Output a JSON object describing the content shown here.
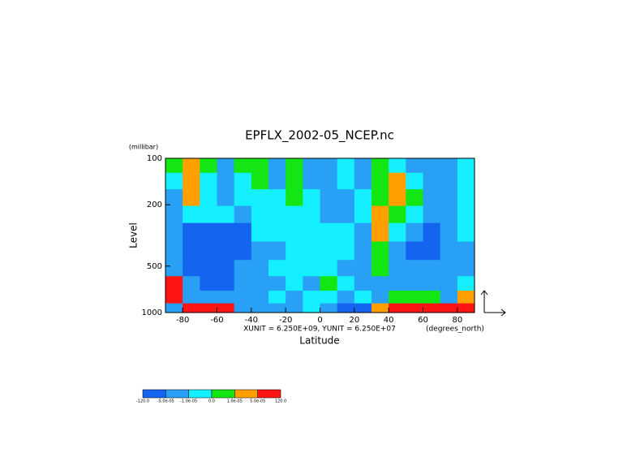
{
  "chart_data": {
    "type": "heatmap",
    "title": "EPFLX_2002-05_NCEP.nc",
    "x_label": "Latitude",
    "x_units": "(degrees_north)",
    "y_label": "Level",
    "y_units": "(millibar)",
    "annotation": "XUNIT = 6.250E+09, YUNIT = 6.250E+07",
    "x": [
      -85,
      -75,
      -65,
      -55,
      -45,
      -35,
      -25,
      -15,
      -5,
      5,
      15,
      25,
      35,
      45,
      55,
      65,
      75,
      85
    ],
    "y": [
      110,
      140,
      180,
      230,
      300,
      400,
      520,
      650,
      800,
      950
    ],
    "z": [
      [
        5e-06,
        3e-05,
        5e-06,
        -3e-05,
        5e-06,
        5e-06,
        -3e-05,
        5e-06,
        -3e-05,
        -3e-05,
        -5e-06,
        -3e-05,
        5e-06,
        -5e-06,
        -3e-05,
        -3e-05,
        -3e-05,
        -5e-06
      ],
      [
        -5e-06,
        3e-05,
        -5e-06,
        -3e-05,
        -5e-06,
        5e-06,
        -3e-05,
        5e-06,
        -3e-05,
        -3e-05,
        -5e-06,
        -3e-05,
        5e-06,
        3e-05,
        -5e-06,
        -3e-05,
        -3e-05,
        -5e-06
      ],
      [
        -3e-05,
        3e-05,
        -5e-06,
        -3e-05,
        -5e-06,
        -5e-06,
        -5e-06,
        5e-06,
        -5e-06,
        -3e-05,
        -3e-05,
        -5e-06,
        5e-06,
        3e-05,
        5e-06,
        -3e-05,
        -3e-05,
        -5e-06
      ],
      [
        -3e-05,
        -5e-06,
        -5e-06,
        -5e-06,
        -3e-05,
        -5e-06,
        -5e-06,
        -5e-06,
        -5e-06,
        -3e-05,
        -3e-05,
        -5e-06,
        3e-05,
        5e-06,
        -5e-06,
        -3e-05,
        -3e-05,
        -5e-06
      ],
      [
        -3e-05,
        -0.0001,
        -0.0001,
        -0.0001,
        -0.0001,
        -5e-06,
        -5e-06,
        -5e-06,
        -5e-06,
        -5e-06,
        -5e-06,
        -3e-05,
        3e-05,
        -5e-06,
        -3e-05,
        -0.0001,
        -3e-05,
        -5e-06
      ],
      [
        -3e-05,
        -0.0001,
        -0.0001,
        -0.0001,
        -0.0001,
        -3e-05,
        -3e-05,
        -5e-06,
        -5e-06,
        -5e-06,
        -5e-06,
        -3e-05,
        5e-06,
        -3e-05,
        -0.0001,
        -0.0001,
        -3e-05,
        -3e-05
      ],
      [
        -3e-05,
        -0.0001,
        -0.0001,
        -0.0001,
        -3e-05,
        -3e-05,
        -5e-06,
        -5e-06,
        -5e-06,
        -5e-06,
        -3e-05,
        -3e-05,
        5e-06,
        -3e-05,
        -3e-05,
        -3e-05,
        -3e-05,
        -3e-05
      ],
      [
        0.0001,
        -3e-05,
        -0.0001,
        -0.0001,
        -3e-05,
        -3e-05,
        -3e-05,
        -5e-06,
        -3e-05,
        5e-06,
        -5e-06,
        -3e-05,
        -3e-05,
        -3e-05,
        -3e-05,
        -3e-05,
        -3e-05,
        -5e-06
      ],
      [
        0.0001,
        -3e-05,
        -3e-05,
        -3e-05,
        -3e-05,
        -3e-05,
        -5e-06,
        -3e-05,
        -5e-06,
        -5e-06,
        -3e-05,
        -5e-06,
        -3e-05,
        5e-06,
        5e-06,
        5e-06,
        -3e-05,
        3e-05
      ],
      [
        -3e-05,
        0.0001,
        0.0001,
        0.0001,
        -3e-05,
        -3e-05,
        -3e-05,
        -3e-05,
        -5e-06,
        -3e-05,
        -0.0001,
        -0.0001,
        3e-05,
        0.0001,
        0.0001,
        0.0001,
        0.0001,
        0.0001
      ]
    ],
    "xlim": [
      -90,
      90
    ],
    "xticks": [
      -80,
      -60,
      -40,
      -20,
      0,
      20,
      40,
      60,
      80
    ],
    "ylim": [
      1000,
      100
    ],
    "yticks": [
      100,
      200,
      500,
      1000
    ],
    "log_y": true,
    "colorbar": {
      "ticks": [
        {
          "value": -120,
          "label": "-120.0"
        },
        {
          "value": -5e-05,
          "label": "-5.0e-05"
        },
        {
          "value": -1e-05,
          "label": "-1.0e-05"
        },
        {
          "value": 0,
          "label": "0.0"
        },
        {
          "value": 1e-05,
          "label": "1.0e-05"
        },
        {
          "value": 5e-05,
          "label": "5.0e-05"
        },
        {
          "value": 120,
          "label": "120.0"
        }
      ],
      "colors": [
        "#1464f0",
        "#28a0f5",
        "#14f0ff",
        "#14e614",
        "#ffa000",
        "#ff1414"
      ]
    }
  }
}
